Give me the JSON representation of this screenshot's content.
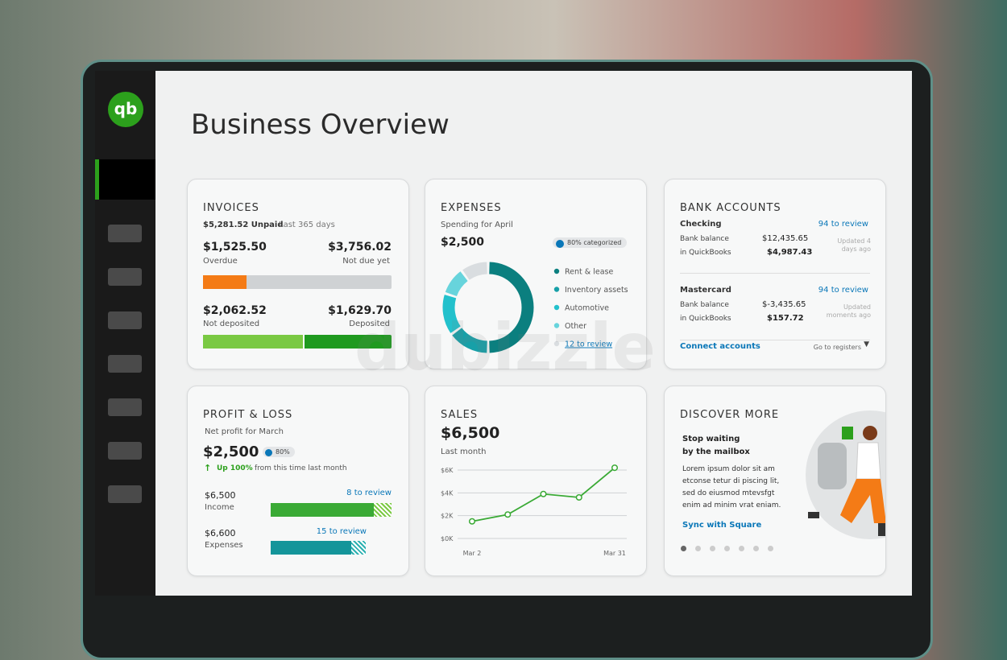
{
  "sidebar": {
    "logo": "qb"
  },
  "header": {
    "title": "Business Overview"
  },
  "invoices": {
    "title": "INVOICES",
    "unpaid": "$5,281.52 Unpaid",
    "period": "Last 365 days",
    "overdue_amount": "$1,525.50",
    "overdue_label": "Overdue",
    "not_due_amount": "$3,756.02",
    "not_due_label": "Not due yet",
    "not_deposited_amount": "$2,062.52",
    "not_deposited_label": "Not deposited",
    "deposited_amount": "$1,629.70",
    "deposited_label": "Deposited"
  },
  "expenses": {
    "title": "EXPENSES",
    "subtitle": "Spending for April",
    "total": "$2,500",
    "badge": "80% categorized",
    "chart": {
      "type": "pie",
      "categories": [
        "Rent & lease",
        "Inventory assets",
        "Automotive",
        "Other",
        "12 to review"
      ],
      "values": [
        50,
        15,
        15,
        10,
        10
      ],
      "colors": [
        "#0b7f7f",
        "#17a0a8",
        "#22c1cc",
        "#67d4dc",
        "#d9dde0"
      ]
    }
  },
  "bank": {
    "title": "BANK ACCOUNTS",
    "accounts": [
      {
        "name": "Checking",
        "review": "94 to review",
        "bank_label": "Bank balance",
        "bank_amount": "$12,435.65",
        "qb_label": "in QuickBooks",
        "qb_amount": "$4,987.43",
        "updated": "Updated 4 days ago"
      },
      {
        "name": "Mastercard",
        "review": "94 to review",
        "bank_label": "Bank balance",
        "bank_amount": "$-3,435.65",
        "qb_label": "in QuickBooks",
        "qb_amount": "$157.72",
        "updated": "Updated moments ago"
      }
    ],
    "connect": "Connect accounts",
    "registers": "Go to registers"
  },
  "pnl": {
    "title": "PROFIT & LOSS",
    "subtitle": "Net profit for March",
    "total": "$2,500",
    "badge": "80%",
    "trend": "Up 100%",
    "trend_suffix": "from this time last month",
    "income_amount": "$6,500",
    "income_label": "Income",
    "income_review": "8 to review",
    "expenses_amount": "$6,600",
    "expenses_label": "Expenses",
    "expenses_review": "15 to review"
  },
  "sales": {
    "title": "SALES",
    "total": "$6,500",
    "subtitle": "Last month",
    "chart": {
      "type": "line",
      "categories": [
        "Mar 2",
        null,
        null,
        null,
        "Mar 31"
      ],
      "values": [
        1500,
        2100,
        3900,
        3600,
        6200
      ],
      "color": "#3aaa35",
      "ylim": [
        0,
        6000
      ],
      "yticks": [
        {
          "value": 0,
          "label": "$0K"
        },
        {
          "value": 2000,
          "label": "$2K"
        },
        {
          "value": 4000,
          "label": "$4K"
        },
        {
          "value": 6000,
          "label": "$6K"
        }
      ],
      "grid": true
    }
  },
  "discover": {
    "title": "DISCOVER MORE",
    "heading_lines": [
      "Stop waiting",
      "by the mailbox"
    ],
    "body": "Lorem ipsum dolor sit am etconse tetur di piscing lit, sed do eiusmod mtevsfgt enim ad minim vrat eniam.",
    "link": "Sync with Square"
  },
  "watermark": "dubizzle"
}
